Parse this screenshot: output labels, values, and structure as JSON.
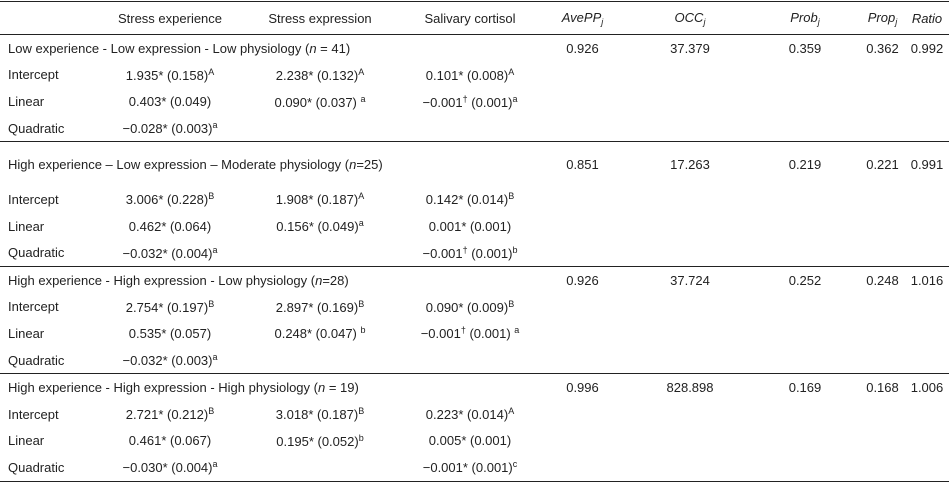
{
  "table": {
    "header": [
      [
        "Stress experience"
      ],
      [
        "Stress expression"
      ],
      [
        "Salivary cortisol"
      ],
      [
        {
          "em": "AvePP"
        },
        {
          "sub": "j"
        }
      ],
      [
        {
          "em": "OCC"
        },
        {
          "sub": "j"
        }
      ],
      [
        {
          "em": "Prob"
        },
        {
          "sub": "j"
        }
      ],
      [
        {
          "em": "Prop"
        },
        {
          "sub": "j"
        }
      ],
      [
        {
          "em": "Ratio"
        }
      ]
    ],
    "groups": [
      {
        "title": [
          "Low experience - Low expression - Low physiology (",
          {
            "em": "n"
          },
          " = 41)"
        ],
        "stats": [
          0.926,
          37.379,
          0.359,
          0.362,
          0.992
        ],
        "rows": [
          {
            "label": "Intercept",
            "cells": [
              [
                "1.935* (0.158)",
                {
                  "sup": "A"
                }
              ],
              [
                "2.238* (0.132)",
                {
                  "sup": "A"
                }
              ],
              [
                "0.101* (0.008)",
                {
                  "sup": "A"
                }
              ]
            ]
          },
          {
            "label": "Linear",
            "cells": [
              [
                "0.403* (0.049)"
              ],
              [
                "0.090* (0.037) ",
                {
                  "sup": "a"
                }
              ],
              [
                "−0.001",
                {
                  "sup": "†"
                },
                " (0.001)",
                {
                  "sup": "a"
                }
              ]
            ]
          },
          {
            "label": "Quadratic",
            "cells": [
              [
                "−0.028* (0.003)",
                {
                  "sup": "a"
                }
              ],
              [],
              []
            ]
          }
        ]
      },
      {
        "title": [
          "High experience – Low expression – Moderate physiology (",
          {
            "em": "n"
          },
          "=25)"
        ],
        "stats": [
          0.851,
          17.263,
          0.219,
          0.221,
          0.991
        ],
        "rows": [
          {
            "label": "Intercept",
            "cells": [
              [
                "3.006* (0.228)",
                {
                  "sup": "B"
                }
              ],
              [
                "1.908* (0.187)",
                {
                  "sup": "A"
                }
              ],
              [
                "0.142* (0.014)",
                {
                  "sup": "B"
                }
              ]
            ]
          },
          {
            "label": "Linear",
            "cells": [
              [
                "0.462* (0.064)"
              ],
              [
                "0.156* (0.049)",
                {
                  "sup": "a"
                }
              ],
              [
                "0.001* (0.001)"
              ]
            ]
          },
          {
            "label": "Quadratic",
            "cells": [
              [
                "−0.032* (0.004)",
                {
                  "sup": "a"
                }
              ],
              [],
              [
                "−0.001",
                {
                  "sup": "†"
                },
                " (0.001)",
                {
                  "sup": "b"
                }
              ]
            ]
          }
        ]
      },
      {
        "title": [
          "High experience - High expression - Low physiology (",
          {
            "em": "n"
          },
          "=28)"
        ],
        "stats": [
          0.926,
          37.724,
          0.252,
          0.248,
          1.016
        ],
        "rows": [
          {
            "label": "Intercept",
            "cells": [
              [
                "2.754* (0.197)",
                {
                  "sup": "B"
                }
              ],
              [
                "2.897* (0.169)",
                {
                  "sup": "B"
                }
              ],
              [
                "0.090* (0.009)",
                {
                  "sup": "B"
                }
              ]
            ]
          },
          {
            "label": "Linear",
            "cells": [
              [
                "0.535* (0.057)"
              ],
              [
                "0.248* (0.047) ",
                {
                  "sup": "b"
                }
              ],
              [
                "−0.001",
                {
                  "sup": "†"
                },
                " (0.001) ",
                {
                  "sup": "a"
                }
              ]
            ]
          },
          {
            "label": "Quadratic",
            "cells": [
              [
                "−0.032* (0.003)",
                {
                  "sup": "a"
                }
              ],
              [],
              []
            ]
          }
        ]
      },
      {
        "title": [
          "High experience - High expression - High physiology (",
          {
            "em": "n"
          },
          " = 19)"
        ],
        "stats": [
          0.996,
          828.898,
          0.169,
          0.168,
          1.006
        ],
        "rows": [
          {
            "label": "Intercept",
            "cells": [
              [
                "2.721* (0.212)",
                {
                  "sup": "B"
                }
              ],
              [
                "3.018* (0.187)",
                {
                  "sup": "B"
                }
              ],
              [
                "0.223* (0.014)",
                {
                  "sup": "A"
                }
              ]
            ]
          },
          {
            "label": "Linear",
            "cells": [
              [
                "0.461* (0.067)"
              ],
              [
                "0.195* (0.052)",
                {
                  "sup": "b"
                }
              ],
              [
                "0.005* (0.001)"
              ]
            ]
          },
          {
            "label": "Quadratic",
            "cells": [
              [
                "−0.030* (0.004)",
                {
                  "sup": "a"
                }
              ],
              [],
              [
                "−0.001* (0.001)",
                {
                  "sup": "c"
                }
              ]
            ]
          }
        ]
      }
    ]
  }
}
